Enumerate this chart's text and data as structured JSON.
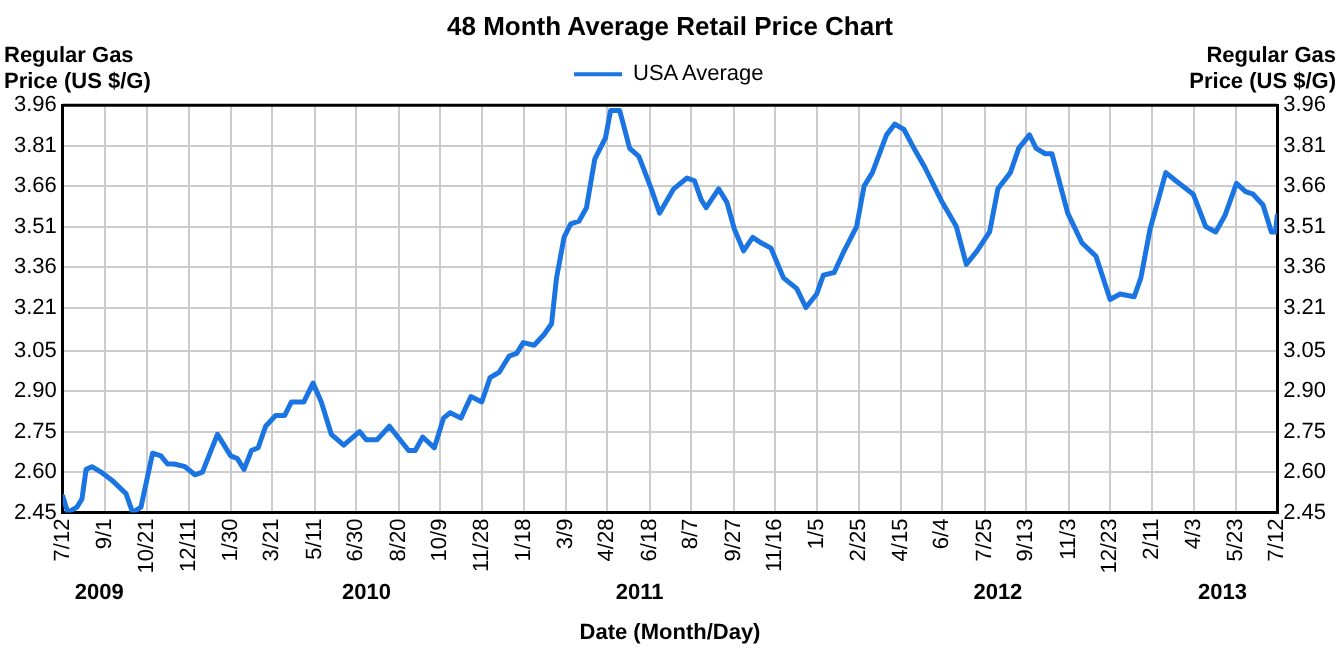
{
  "chart_data": {
    "type": "line",
    "title": "48 Month Average Retail Price Chart",
    "xlabel": "Date (Month/Day)",
    "ylabel": "Regular Gas Price (US $/G)",
    "y2label": "Regular Gas Price (US $/G)",
    "legend": "top",
    "grid": true,
    "marker": "none",
    "line_style": "solid",
    "xlim": [
      "2009-07-12",
      "2013-07-12"
    ],
    "xticks": [
      {
        "value": "2009-07-12",
        "label": "7/12"
      },
      {
        "value": "2009-09-01",
        "label": "9/1"
      },
      {
        "value": "2009-10-21",
        "label": "10/21"
      },
      {
        "value": "2009-12-11",
        "label": "12/11"
      },
      {
        "value": "2010-01-30",
        "label": "1/30"
      },
      {
        "value": "2010-03-21",
        "label": "3/21"
      },
      {
        "value": "2010-05-11",
        "label": "5/11"
      },
      {
        "value": "2010-06-30",
        "label": "6/30"
      },
      {
        "value": "2010-08-20",
        "label": "8/20"
      },
      {
        "value": "2010-10-09",
        "label": "10/9"
      },
      {
        "value": "2010-11-28",
        "label": "11/28"
      },
      {
        "value": "2011-01-18",
        "label": "1/18"
      },
      {
        "value": "2011-03-09",
        "label": "3/9"
      },
      {
        "value": "2011-04-28",
        "label": "4/28"
      },
      {
        "value": "2011-06-18",
        "label": "6/18"
      },
      {
        "value": "2011-08-07",
        "label": "8/7"
      },
      {
        "value": "2011-09-27",
        "label": "9/27"
      },
      {
        "value": "2011-11-16",
        "label": "11/16"
      },
      {
        "value": "2012-01-05",
        "label": "1/5"
      },
      {
        "value": "2012-02-25",
        "label": "2/25"
      },
      {
        "value": "2012-04-15",
        "label": "4/15"
      },
      {
        "value": "2012-06-04",
        "label": "6/4"
      },
      {
        "value": "2012-07-25",
        "label": "7/25"
      },
      {
        "value": "2012-09-13",
        "label": "9/13"
      },
      {
        "value": "2012-11-03",
        "label": "11/3"
      },
      {
        "value": "2012-12-23",
        "label": "12/23"
      },
      {
        "value": "2013-02-11",
        "label": "2/11"
      },
      {
        "value": "2013-04-03",
        "label": "4/3"
      },
      {
        "value": "2013-05-23",
        "label": "5/23"
      },
      {
        "value": "2013-07-12",
        "label": "7/12"
      }
    ],
    "ylim": [
      2.45,
      3.96
    ],
    "yticks": [
      2.45,
      {
        "value": 2.6,
        "label": "2.60"
      },
      2.75,
      {
        "value": 2.9,
        "label": "2.90"
      },
      3.05,
      3.21,
      3.36,
      3.51,
      3.66,
      3.81,
      3.96
    ],
    "y2lim": [
      2.45,
      3.96
    ],
    "y2ticks": [
      2.45,
      {
        "value": 2.6,
        "label": "2.60"
      },
      2.75,
      {
        "value": 2.9,
        "label": "2.90"
      },
      3.05,
      3.21,
      3.36,
      3.51,
      3.66,
      3.81,
      3.96
    ],
    "annotations": [
      "2009",
      "2010",
      "2011",
      "2012",
      "2013"
    ],
    "series": [
      {
        "name": "USA Average",
        "color": "#1a74e2",
        "x": [
          "2009-07-12",
          "2009-07-18",
          "2009-07-29",
          "2009-08-04",
          "2009-08-09",
          "2009-08-16",
          "2009-08-27",
          "2009-09-09",
          "2009-09-26",
          "2009-10-04",
          "2009-10-14",
          "2009-10-28",
          "2009-11-07",
          "2009-11-15",
          "2009-11-23",
          "2009-12-06",
          "2009-12-18",
          "2009-12-27",
          "2010-01-14",
          "2010-01-30",
          "2010-02-07",
          "2010-02-15",
          "2010-02-24",
          "2010-03-04",
          "2010-03-13",
          "2010-03-25",
          "2010-04-05",
          "2010-04-13",
          "2010-04-28",
          "2010-05-09",
          "2010-05-19",
          "2010-05-31",
          "2010-06-15",
          "2010-06-30",
          "2010-07-04",
          "2010-07-12",
          "2010-07-25",
          "2010-08-09",
          "2010-08-19",
          "2010-09-01",
          "2010-09-09",
          "2010-09-18",
          "2010-10-02",
          "2010-10-13",
          "2010-10-21",
          "2010-11-03",
          "2010-11-15",
          "2010-11-28",
          "2010-12-08",
          "2010-12-19",
          "2010-12-31",
          "2011-01-09",
          "2011-01-17",
          "2011-01-30",
          "2011-02-11",
          "2011-02-20",
          "2011-02-26",
          "2011-03-07",
          "2011-03-15",
          "2011-03-25",
          "2011-04-03",
          "2011-04-13",
          "2011-04-26",
          "2011-05-02",
          "2011-05-13",
          "2011-05-25",
          "2011-06-05",
          "2011-06-20",
          "2011-06-30",
          "2011-07-17",
          "2011-08-02",
          "2011-08-11",
          "2011-08-19",
          "2011-08-25",
          "2011-09-09",
          "2011-09-19",
          "2011-09-28",
          "2011-10-09",
          "2011-10-20",
          "2011-10-30",
          "2011-11-11",
          "2011-11-26",
          "2011-12-12",
          "2011-12-23",
          "2012-01-05",
          "2012-01-13",
          "2012-01-26",
          "2012-02-07",
          "2012-02-22",
          "2012-03-02",
          "2012-03-12",
          "2012-03-29",
          "2012-04-08",
          "2012-04-19",
          "2012-05-01",
          "2012-05-14",
          "2012-06-04",
          "2012-06-21",
          "2012-07-03",
          "2012-07-16",
          "2012-07-31",
          "2012-08-10",
          "2012-08-25",
          "2012-09-04",
          "2012-09-17",
          "2012-09-25",
          "2012-10-06",
          "2012-10-14",
          "2012-11-02",
          "2012-11-19",
          "2012-12-06",
          "2012-12-23",
          "2013-01-04",
          "2013-01-21",
          "2013-01-29",
          "2013-02-09",
          "2013-02-28",
          "2013-03-12",
          "2013-04-02",
          "2013-04-17",
          "2013-04-29",
          "2013-05-10",
          "2013-05-24",
          "2013-06-04",
          "2013-06-13",
          "2013-06-25",
          "2013-07-05",
          "2013-07-10",
          "2013-07-12"
        ],
        "values": [
          2.51,
          2.45,
          2.47,
          2.5,
          2.61,
          2.62,
          2.6,
          2.57,
          2.52,
          2.45,
          2.47,
          2.67,
          2.66,
          2.63,
          2.63,
          2.62,
          2.59,
          2.6,
          2.74,
          2.66,
          2.65,
          2.61,
          2.68,
          2.69,
          2.77,
          2.81,
          2.81,
          2.86,
          2.86,
          2.93,
          2.86,
          2.74,
          2.7,
          2.74,
          2.75,
          2.72,
          2.72,
          2.77,
          2.73,
          2.68,
          2.68,
          2.73,
          2.69,
          2.8,
          2.82,
          2.8,
          2.88,
          2.86,
          2.95,
          2.97,
          3.03,
          3.04,
          3.08,
          3.07,
          3.11,
          3.15,
          3.32,
          3.47,
          3.52,
          3.53,
          3.58,
          3.76,
          3.84,
          3.94,
          3.94,
          3.8,
          3.77,
          3.65,
          3.56,
          3.65,
          3.69,
          3.68,
          3.61,
          3.58,
          3.65,
          3.6,
          3.5,
          3.42,
          3.47,
          3.45,
          3.43,
          3.32,
          3.28,
          3.21,
          3.26,
          3.33,
          3.34,
          3.42,
          3.51,
          3.66,
          3.71,
          3.85,
          3.89,
          3.87,
          3.8,
          3.73,
          3.6,
          3.51,
          3.37,
          3.42,
          3.49,
          3.65,
          3.71,
          3.8,
          3.85,
          3.8,
          3.78,
          3.78,
          3.56,
          3.45,
          3.4,
          3.24,
          3.26,
          3.25,
          3.32,
          3.5,
          3.71,
          3.68,
          3.63,
          3.51,
          3.49,
          3.55,
          3.67,
          3.64,
          3.63,
          3.59,
          3.49,
          3.49,
          3.55
        ]
      }
    ]
  }
}
